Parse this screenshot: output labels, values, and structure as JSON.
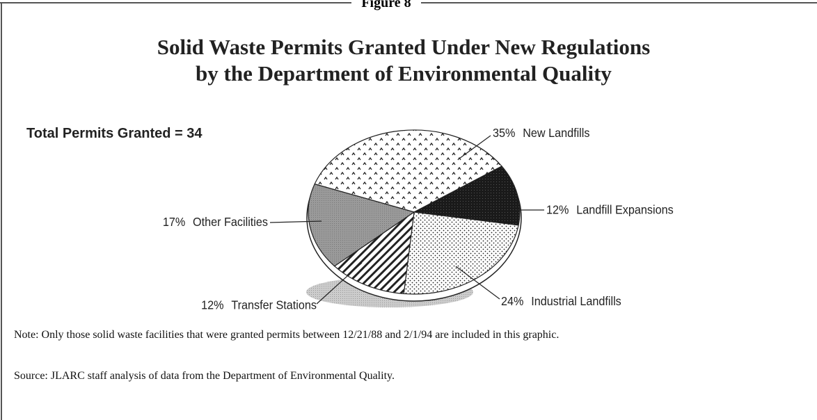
{
  "chart_data": {
    "type": "pie",
    "figure_label": "Figure 8",
    "title": [
      "Solid Waste Permits Granted Under New Regulations",
      "by the Department of Environmental Quality"
    ],
    "annotation": "Total Permits Granted = 34",
    "categories": [
      "New Landfills",
      "Landfill Expansions",
      "Industrial Landfills",
      "Transfer Stations",
      "Other Facilities"
    ],
    "values": [
      35,
      12,
      24,
      12,
      17
    ],
    "value_labels": [
      "35%",
      "12%",
      "24%",
      "12%",
      "17%"
    ],
    "note": "Note: Only those solid waste facilities that were granted permits between 12/21/88 and 2/1/94 are included in this graphic.",
    "source": "Source: JLARC staff analysis of data from the Department of Environmental Quality."
  }
}
